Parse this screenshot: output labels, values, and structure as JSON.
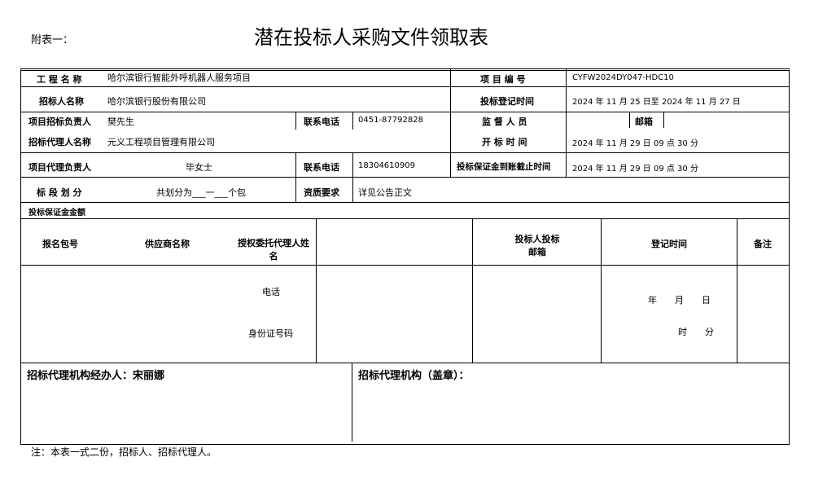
{
  "header": {
    "appendix": "附表一：",
    "title": "潜在投标人采购文件领取表"
  },
  "rows": {
    "project_name_label": "工 程 名 称",
    "project_name": "哈尔滨银行智能外呼机器人服务项目",
    "project_no_label": "项 目 编 号",
    "project_no": "CYFW2024DY047-HDC10",
    "tenderer_label": "招标人名称",
    "tenderer": "哈尔滨银行股份有限公司",
    "reg_time_label": "投标登记时间",
    "reg_time": "2024 年 11 月 25 日至 2024 年 11 月 27 日",
    "tender_lead_label": "项目招标负责人",
    "tender_lead": "樊先生",
    "phone_label": "联系电话",
    "phone1": "0451-87792828",
    "supervisor_label": "监 督 人 员",
    "supervisor": "",
    "email_label": "邮箱",
    "agent_label": "招标代理人名称",
    "agent": "元义工程项目管理有限公司",
    "open_time_label": "开 标 时 间",
    "open_time": "2024 年 11 月 29 日 09 点 30 分",
    "agent_lead_label": "项目代理负责人",
    "agent_lead": "毕女士",
    "phone2": "18304610909",
    "deposit_deadline_label": "投标保证金到账截止时间",
    "deposit_deadline": "2024 年 11 月 29 日 09 点 30 分",
    "section_label": "标 段 划 分",
    "section": "共划分为___一___个包",
    "qual_label": "资质要求",
    "qual": "详见公告正文",
    "deposit_amount_label": "投标保证金金额"
  },
  "table": {
    "headers": [
      "报名包号",
      "供应商名称",
      "授权委托代理人姓名",
      "投标人投标邮箱",
      "登记时间",
      "备注"
    ],
    "phone": "电话",
    "id_no": "身份证号码",
    "date": "年　　月　　日",
    "time": "时　　分"
  },
  "footer": {
    "handler": "招标代理机构经办人：宋丽娜",
    "seal": "招标代理机构（盖章）：",
    "note": "注：本表一式二份，招标人、招标代理人。"
  }
}
